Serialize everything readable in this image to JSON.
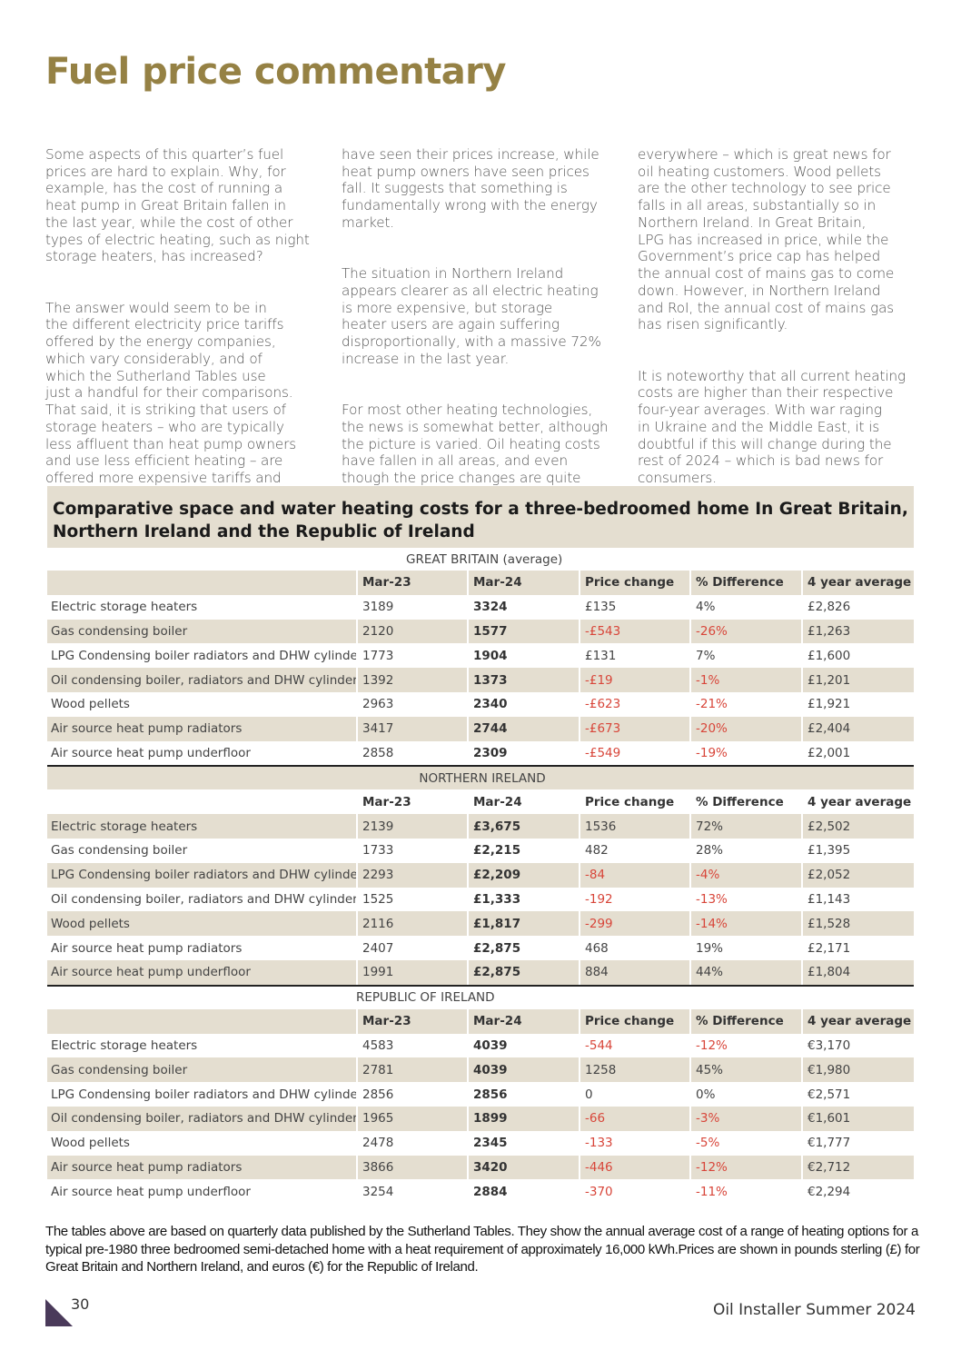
{
  "title": "Fuel price commentary",
  "columns": [
    [
      "Some aspects of this quarter’s fuel\nprices are hard to explain. Why, for\nexample, has the cost of running a\nheat pump in Great Britain fallen in\nthe last year, while the cost of other\ntypes of electric heating, such as night\nstorage heaters, has increased?",
      "The answer would seem to be in\nthe different electricity price tariffs\noffered by the energy companies,\nwhich vary considerably, and of\nwhich the Sutherland Tables use\njust a handful for their comparisons.\nThat said, it is striking that users of\nstorage heaters – who are typically\nless affluent than heat pump owners\nand use less efficient heating – are\noffered more expensive tariffs and"
    ],
    [
      "have seen their prices increase, while\nheat pump owners have seen prices\nfall. It suggests that something is\nfundamentally wrong with the energy\nmarket.",
      "The situation in Northern Ireland\nappears clearer as all electric heating\nis more expensive, but storage\nheater users are again suffering\ndisproportionally, with a massive 72%\nincrease in the last year.",
      "For most other heating technologies,\nthe news is somewhat better, although\nthe picture is varied. Oil heating costs\nhave fallen in all areas, and even\nthough the price changes are quite\nsmall, it is now the cheapest fuel"
    ],
    [
      "everywhere – which is great news for\noil heating customers. Wood pellets\nare the other technology to see price\nfalls in all areas, substantially so in\nNorthern Ireland. In Great Britain,\nLPG has increased in price, while the\nGovernment’s price cap has helped\nthe annual cost of mains gas to come\ndown. However, in Northern Ireland\nand RoI, the annual cost of mains gas\nhas risen significantly.",
      "It is noteworthy that all current heating\ncosts are higher than their respective\nfour-year averages. With war raging\nin Ukraine and the Middle East, it is\ndoubtful if this will change during the\nrest of 2024 – which is bad news for\nconsumers."
    ]
  ],
  "table_heading": "Comparative space and water heating costs for a three-bedroomed home In Great Britain, Northern Ireland and the Republic of Ireland",
  "headers": [
    "",
    "Mar-23",
    "Mar-24",
    "Price change",
    "% Difference",
    "4 year average"
  ],
  "sections": [
    {
      "name": "GREAT BRITAIN (average)",
      "rows": [
        [
          "Electric storage heaters",
          "3189",
          "3324",
          "£135",
          "4%",
          "£2,826"
        ],
        [
          "Gas condensing boiler",
          "2120",
          "1577",
          "-£543",
          "-26%",
          "£1,263"
        ],
        [
          "LPG Condensing boiler radiators and DHW cylinder",
          "1773",
          "1904",
          "£131",
          "7%",
          "£1,600"
        ],
        [
          "Oil condensing boiler, radiators and DHW cylinder",
          "1392",
          "1373",
          "-£19",
          "-1%",
          "£1,201"
        ],
        [
          "Wood pellets",
          "2963",
          "2340",
          "-£623",
          "-21%",
          "£1,921"
        ],
        [
          "Air source heat pump radiators",
          "3417",
          "2744",
          "-£673",
          "-20%",
          "£2,404"
        ],
        [
          "Air source heat pump underfloor",
          "2858",
          "2309",
          "-£549",
          "-19%",
          "£2,001"
        ]
      ]
    },
    {
      "name": "NORTHERN IRELAND",
      "rows": [
        [
          "Electric storage heaters",
          "2139",
          "£3,675",
          "1536",
          "72%",
          "£2,502"
        ],
        [
          "Gas condensing boiler",
          "1733",
          "£2,215",
          "482",
          "28%",
          "£1,395"
        ],
        [
          "LPG Condensing boiler radiators and DHW cylinder",
          "2293",
          "£2,209",
          "-84",
          "-4%",
          "£2,052"
        ],
        [
          "Oil condensing boiler, radiators and DHW cylinder",
          "1525",
          "£1,333",
          "-192",
          "-13%",
          "£1,143"
        ],
        [
          "Wood pellets",
          "2116",
          "£1,817",
          "-299",
          "-14%",
          "£1,528"
        ],
        [
          "Air source heat pump radiators",
          "2407",
          "£2,875",
          "468",
          "19%",
          "£2,171"
        ],
        [
          "Air source heat pump underfloor",
          "1991",
          "£2,875",
          "884",
          "44%",
          "£1,804"
        ]
      ]
    },
    {
      "name": "REPUBLIC OF IRELAND",
      "rows": [
        [
          "Electric storage heaters",
          "4583",
          "4039",
          "-544",
          "-12%",
          "€3,170"
        ],
        [
          "Gas condensing boiler",
          "2781",
          "4039",
          "1258",
          "45%",
          "€1,980"
        ],
        [
          "LPG Condensing boiler radiators and DHW cylinder",
          "2856",
          "2856",
          "0",
          "0%",
          "€2,571"
        ],
        [
          "Oil condensing boiler, radiators and DHW cylinder",
          "1965",
          "1899",
          "-66",
          "-3%",
          "€1,601"
        ],
        [
          "Wood pellets",
          "2478",
          "2345",
          "-133",
          "-5%",
          "€1,777"
        ],
        [
          "Air source heat pump radiators",
          "3866",
          "3420",
          "-446",
          "-12%",
          "€2,712"
        ],
        [
          "Air source heat pump underfloor",
          "3254",
          "2884",
          "-370",
          "-11%",
          "€2,294"
        ]
      ]
    }
  ],
  "note": "The tables above are based on quarterly data published by the Sutherland Tables. They show the annual average cost of a range of heating options for a typical pre-1980 three bedroomed semi-detached home with a heat requirement of approximately 16,000 kWh.Prices are shown in pounds sterling (£) for Great Britain and Northern Ireland, and euros (€) for the Republic of Ireland.",
  "footer": {
    "page_number": "30",
    "publication": "Oil Installer Summer 2024"
  },
  "colors": {
    "title": "#958144",
    "shade": "#e4ded0",
    "negative": "#d8463a",
    "corner": "#4a3a5a"
  }
}
